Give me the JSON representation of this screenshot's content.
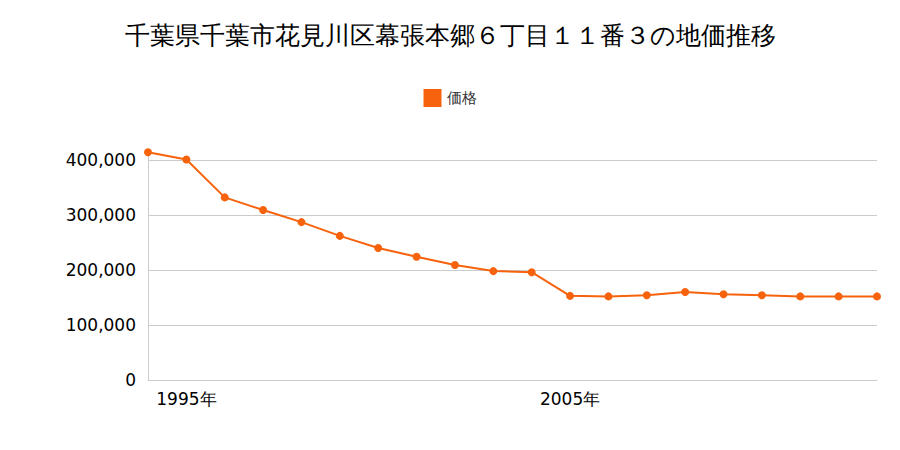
{
  "chart_data": {
    "type": "line",
    "title": "千葉県千葉市花見川区幕張本郷６丁目１１番３の地価推移",
    "categories": [
      null,
      "1995年",
      null,
      null,
      null,
      null,
      null,
      null,
      null,
      null,
      null,
      "2005年",
      null,
      null,
      null,
      null,
      null,
      null,
      null,
      null
    ],
    "series": [
      {
        "name": "価格",
        "color": "#f6630c",
        "values": [
          414000,
          401000,
          332000,
          309000,
          287000,
          262000,
          240000,
          224000,
          209000,
          198000,
          196000,
          153000,
          152000,
          154000,
          160000,
          156000,
          154000,
          152000,
          152000,
          152000
        ]
      }
    ],
    "ylim": [
      0,
      420000
    ],
    "yticks": [
      0,
      {
        "value": 100000,
        "label": "100,000"
      },
      {
        "value": 200000,
        "label": "200,000"
      },
      {
        "value": 300000,
        "label": "300,000"
      },
      {
        "value": 400000,
        "label": "400,000"
      }
    ],
    "grid": true,
    "legend": "top",
    "marker": "circle"
  }
}
